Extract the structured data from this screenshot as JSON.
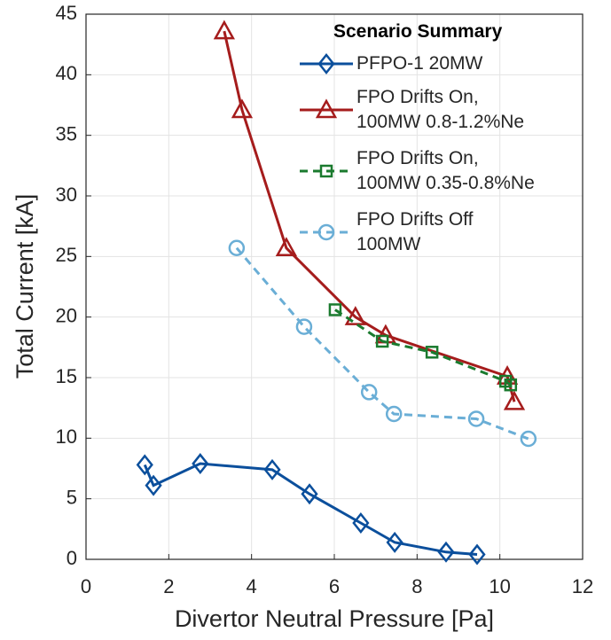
{
  "chart_data": {
    "type": "line",
    "x_label": "Divertor Neutral Pressure [Pa]",
    "y_label": "Total Current [kA]",
    "legend_title": "Scenario Summary",
    "legend": "upper right",
    "grid": true,
    "xlim": [
      0,
      12
    ],
    "xticks": [
      0,
      2,
      4,
      6,
      8,
      10,
      12
    ],
    "ylim": [
      0,
      45
    ],
    "yticks": [
      0,
      5,
      10,
      15,
      20,
      25,
      30,
      35,
      40,
      45
    ],
    "series": [
      {
        "name": "PFPO-1 20MW",
        "color": "#0b4f9c",
        "marker": "diamond",
        "dashed": false,
        "x": [
          1.42,
          1.63,
          2.76,
          4.5,
          5.4,
          6.64,
          7.46,
          8.7,
          9.45
        ],
        "values": [
          7.8,
          6.1,
          7.9,
          7.4,
          5.4,
          3.0,
          1.4,
          0.6,
          0.4
        ]
      },
      {
        "name": "FPO Drifts On,\n100MW 0.8-1.2%Ne",
        "color": "#a51c1c",
        "marker": "triangle",
        "dashed": false,
        "x": [
          3.34,
          3.77,
          4.84,
          6.51,
          7.24,
          10.18,
          10.35
        ],
        "values": [
          43.6,
          37.1,
          25.7,
          20.0,
          18.5,
          15.1,
          13.0
        ]
      },
      {
        "name": "FPO Drifts On,\n100MW 0.35-0.8%Ne",
        "color": "#1a7a2e",
        "marker": "square",
        "dashed": true,
        "x": [
          6.02,
          7.16,
          8.36,
          10.14,
          10.26
        ],
        "values": [
          20.6,
          18.0,
          17.1,
          14.7,
          14.4
        ]
      },
      {
        "name": "FPO Drifts Off\n100MW",
        "color": "#6aaed6",
        "marker": "circle",
        "dashed": true,
        "x": [
          3.64,
          5.27,
          6.84,
          7.44,
          9.43,
          10.69
        ],
        "values": [
          25.7,
          19.2,
          13.8,
          12.0,
          11.6,
          9.95
        ]
      }
    ]
  }
}
